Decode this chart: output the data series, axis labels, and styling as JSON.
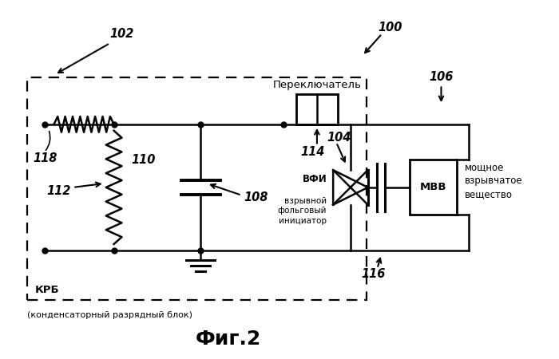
{
  "title": "Фиг.2",
  "label_100": "100",
  "label_102": "102",
  "label_104": "104",
  "label_106": "106",
  "label_108": "108",
  "label_110": "110",
  "label_112": "112",
  "label_114": "114",
  "label_116": "116",
  "label_118": "118",
  "label_switch": "Переключатель",
  "label_vfi": "ВФИ",
  "label_vfi_full": "взрывной\nфольговый\nинициатор",
  "label_mvv": "МВВ",
  "label_mvv_full": "мощное\nвзрывчатое\nвещество",
  "label_krb": "КРБ",
  "label_krb_full": "(конденсаторный разрядный блок)",
  "bg_color": "#ffffff",
  "line_color": "#000000"
}
